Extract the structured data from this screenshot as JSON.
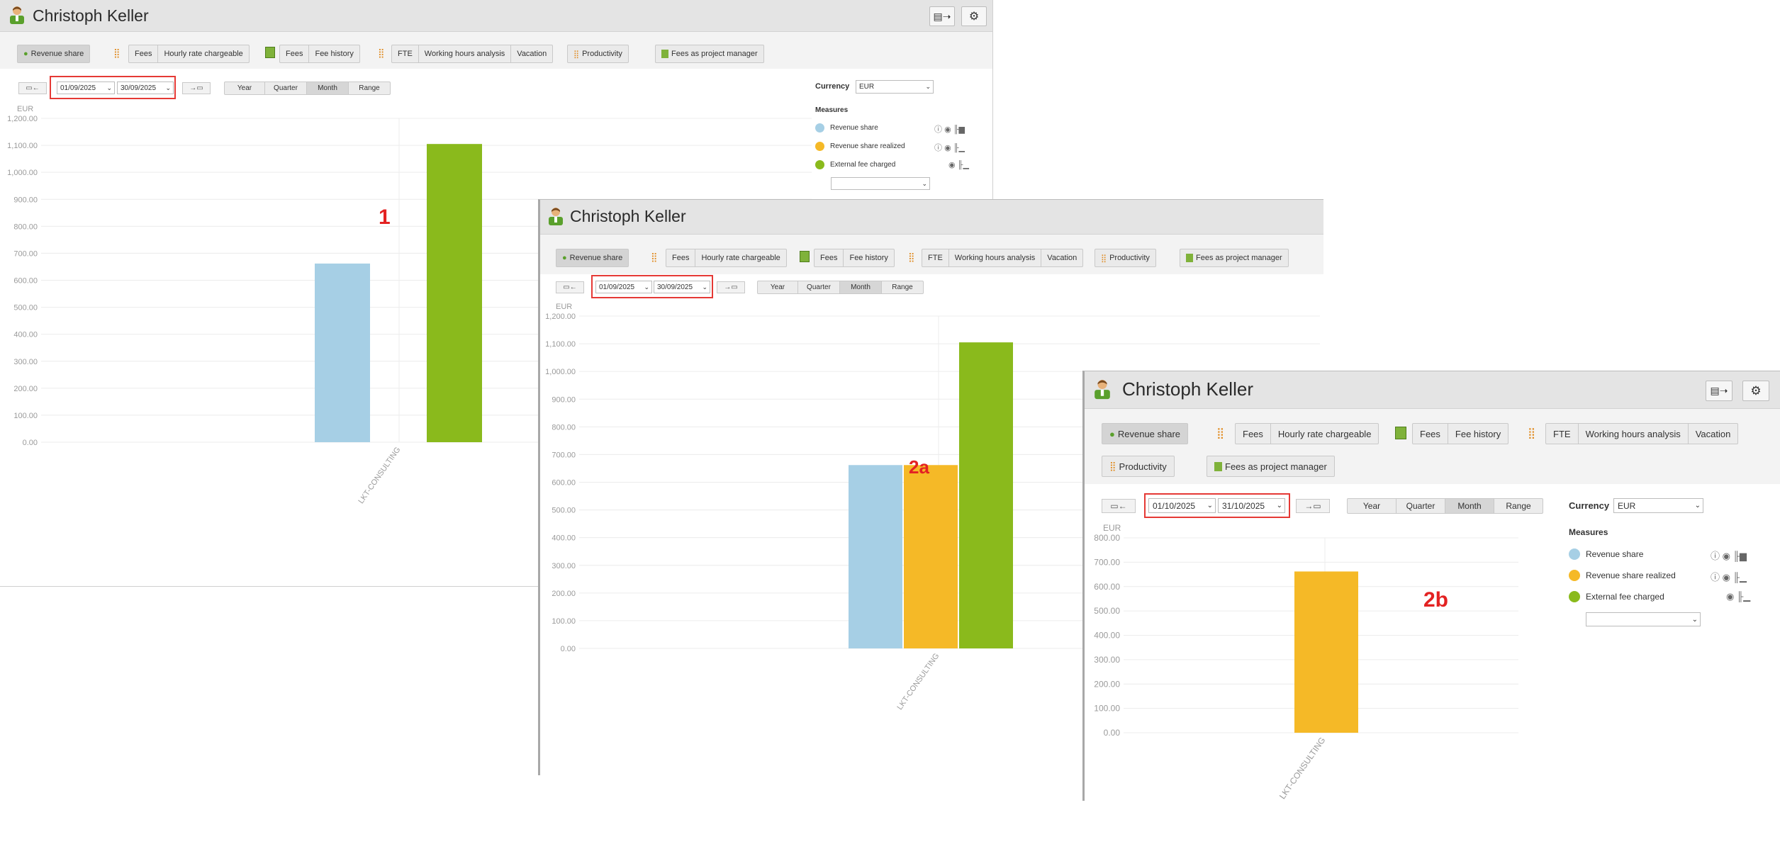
{
  "colors": {
    "accent": "#e53935",
    "revenue_share": "#a6cfe5",
    "revenue_share_realized": "#f5b927",
    "external_fee_charged": "#8aba1c",
    "marker": "#e32222"
  },
  "common": {
    "user_name": "Christoph Keller",
    "icons": [
      "user-avatar-icon",
      "export-icon",
      "gear-icon",
      "chart-bars-icon",
      "ledger-icon",
      "arrow-left-icon",
      "arrow-right-icon",
      "info-icon",
      "eye-icon",
      "chart-small-icon",
      "chevron-down-icon"
    ],
    "toolbar": {
      "revenue_share": "Revenue share",
      "fees_1": "Fees",
      "hourly_rate": "Hourly rate chargeable",
      "fees_2": "Fees",
      "fee_history": "Fee history",
      "fte": "FTE",
      "working_hours": "Working hours analysis",
      "vacation": "Vacation",
      "productivity": "Productivity",
      "fees_pm": "Fees as project manager"
    },
    "period": {
      "year": "Year",
      "quarter": "Quarter",
      "month": "Month",
      "range": "Range",
      "selected": "Month"
    },
    "currency_label": "Currency",
    "currency_value": "EUR",
    "measures_label": "Measures",
    "measures": [
      "Revenue share",
      "Revenue share realized",
      "External fee charged"
    ],
    "measure_select_value": ""
  },
  "panel1": {
    "marker": "1",
    "date_from": "01/09/2025",
    "date_to": "30/09/2025"
  },
  "panel2a": {
    "marker": "2a",
    "date_from": "01/09/2025",
    "date_to": "30/09/2025"
  },
  "panel2b": {
    "marker": "2b",
    "date_from": "01/10/2025",
    "date_to": "31/10/2025"
  },
  "chart_data": [
    {
      "type": "bar",
      "panel": "1",
      "ylabel": "EUR",
      "categories": [
        "LKT-CONSULTING"
      ],
      "series": [
        {
          "name": "Revenue share",
          "values": [
            662
          ]
        },
        {
          "name": "External fee charged",
          "values": [
            1105
          ]
        }
      ],
      "ylim": [
        0,
        1200
      ],
      "yticks": [
        "0.00",
        "100.00",
        "200.00",
        "300.00",
        "400.00",
        "500.00",
        "600.00",
        "700.00",
        "800.00",
        "900.00",
        "1,000.00",
        "1,100.00",
        "1,200.00"
      ],
      "grid": true
    },
    {
      "type": "bar",
      "panel": "2a",
      "ylabel": "EUR",
      "categories": [
        "LKT-CONSULTING"
      ],
      "series": [
        {
          "name": "Revenue share",
          "values": [
            662
          ]
        },
        {
          "name": "Revenue share realized",
          "values": [
            662
          ]
        },
        {
          "name": "External fee charged",
          "values": [
            1105
          ]
        }
      ],
      "ylim": [
        0,
        1200
      ],
      "yticks": [
        "0.00",
        "100.00",
        "200.00",
        "300.00",
        "400.00",
        "500.00",
        "600.00",
        "700.00",
        "800.00",
        "900.00",
        "1,000.00",
        "1,100.00",
        "1,200.00"
      ],
      "grid": true
    },
    {
      "type": "bar",
      "panel": "2b",
      "ylabel": "EUR",
      "categories": [
        "LKT-CONSULTING"
      ],
      "series": [
        {
          "name": "Revenue share realized",
          "values": [
            662
          ]
        }
      ],
      "ylim": [
        0,
        800
      ],
      "yticks": [
        "0.00",
        "100.00",
        "200.00",
        "300.00",
        "400.00",
        "500.00",
        "600.00",
        "700.00",
        "800.00"
      ],
      "grid": true
    }
  ]
}
